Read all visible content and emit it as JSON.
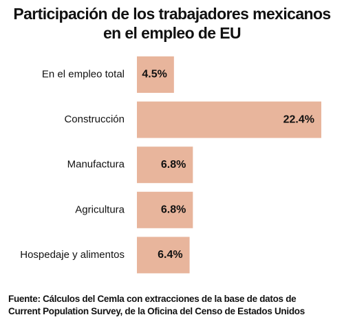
{
  "title_lines": [
    "Participación de los trabajadores mexicanos",
    "en el empleo de EU"
  ],
  "source_lines": [
    "Fuente: Cálculos del Cemla con extracciones de la base de datos  de",
    "Current Population Survey, de la Oficina del Censo de Estados Unidos"
  ],
  "colors": {
    "bar": "#e8b59c",
    "text": "#111111"
  },
  "chart_data": {
    "type": "bar",
    "orientation": "horizontal",
    "categories": [
      "En el empleo total",
      "Construcción",
      "Manufactura",
      "Agricultura",
      "Hospedaje y alimentos"
    ],
    "values": [
      4.5,
      22.4,
      6.8,
      6.8,
      6.4
    ],
    "value_labels": [
      "4.5%",
      "22.4%",
      "6.8%",
      "6.8%",
      "6.4%"
    ],
    "title": "Participación de los trabajadores mexicanos en el empleo de EU",
    "xlabel": "",
    "ylabel": "",
    "grid": false,
    "legend": "none"
  }
}
